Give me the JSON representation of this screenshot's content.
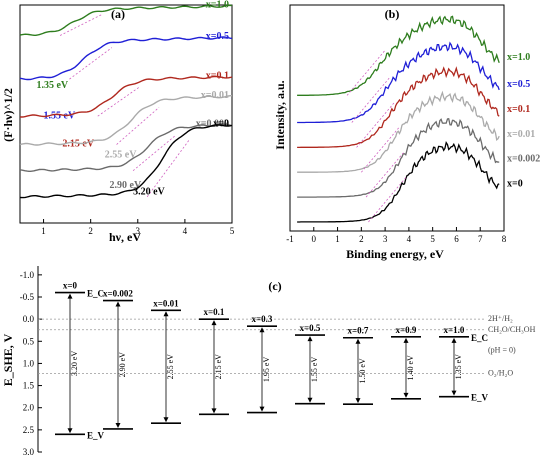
{
  "chart_data": [
    {
      "panel": "(a)",
      "type": "line",
      "xlabel": "hν, eV",
      "ylabel": "(F·hν)^1/2",
      "xlim": [
        0.5,
        5
      ],
      "x_ticks": [
        "1",
        "2",
        "3",
        "4",
        "5"
      ],
      "series": [
        {
          "name": "x=1.0",
          "color": "#2e7d1e",
          "band_gap_label": "1.35 eV",
          "edge": 1.35,
          "base": 0.86,
          "step": 0.115
        },
        {
          "name": "x=0.5",
          "color": "#1f1fd6",
          "band_gap_label": "1.55 eV",
          "edge": 1.55,
          "base": 0.66,
          "step": 0.17
        },
        {
          "name": "x=0.1",
          "color": "#b0281e",
          "band_gap_label": "2.15 eV",
          "edge": 2.15,
          "base": 0.49,
          "step": 0.16
        },
        {
          "name": "x=0.01",
          "color": "#aaaaaa",
          "band_gap_label": "2.55 eV",
          "edge": 2.55,
          "base": 0.36,
          "step": 0.2
        },
        {
          "name": "x=0.002",
          "color": "#6b6b6b",
          "band_gap_label": "2.90 eV",
          "edge": 2.9,
          "base": 0.24,
          "step": 0.19
        },
        {
          "name": "x=0",
          "color": "#000000",
          "band_gap_label": "3.20 eV",
          "edge": 3.2,
          "base": 0.12,
          "step": 0.31
        }
      ]
    },
    {
      "panel": "(b)",
      "type": "line",
      "xlabel": "Binding energy, eV",
      "ylabel": "Intensity, a.u.",
      "xlim": [
        -1,
        8
      ],
      "x_ticks": [
        "-1",
        "0",
        "1",
        "2",
        "3",
        "4",
        "5",
        "6",
        "7",
        "8"
      ],
      "series": [
        {
          "name": "x=1.0",
          "color": "#2e7d1e",
          "vb_edge": 1.4,
          "offset": 0.6
        },
        {
          "name": "x=0.5",
          "color": "#1f1fd6",
          "vb_edge": 1.6,
          "offset": 0.48
        },
        {
          "name": "x=0.1",
          "color": "#b0281e",
          "vb_edge": 1.8,
          "offset": 0.37
        },
        {
          "name": "x=0.01",
          "color": "#aaaaaa",
          "vb_edge": 2.0,
          "offset": 0.26
        },
        {
          "name": "x=0.002",
          "color": "#6b6b6b",
          "vb_edge": 2.2,
          "offset": 0.15
        },
        {
          "name": "x=0",
          "color": "#000000",
          "vb_edge": 2.3,
          "offset": 0.04
        }
      ]
    },
    {
      "panel": "(c)",
      "type": "bar",
      "ylabel": "E_SHE, V",
      "ylim": [
        -1.2,
        3.0
      ],
      "y_ticks": [
        "-1.0",
        "-0.5",
        "0.0",
        "0.5",
        "1.0",
        "1.5",
        "2.0",
        "2.5",
        "3.0"
      ],
      "ec_label": "E_C",
      "ev_label": "E_V",
      "references": [
        {
          "label": "2H⁺/H₂",
          "value": 0.0
        },
        {
          "label": "CH₂O/CH₃OH",
          "value": 0.24
        },
        {
          "label": "O₂/H₂O",
          "value": 1.23
        }
      ],
      "ph_note": "(pH = 0)",
      "categories": [
        "x=0",
        "x=0.002",
        "x=0.01",
        "x=0.1",
        "x=0.3",
        "x=0.5",
        "x=0.7",
        "x=0.9",
        "x=1.0"
      ],
      "ec": [
        -0.6,
        -0.42,
        -0.2,
        0.0,
        0.16,
        0.36,
        0.42,
        0.4,
        0.4
      ],
      "ev": [
        2.6,
        2.48,
        2.35,
        2.15,
        2.11,
        1.91,
        1.92,
        1.8,
        1.75
      ],
      "gap_labels": [
        "3.20 eV",
        "2.90 eV",
        "2.55 eV",
        "2.15 eV",
        "1.95 eV",
        "1.55 eV",
        "1.50 eV",
        "1.40 eV",
        "1.35 eV"
      ]
    }
  ]
}
